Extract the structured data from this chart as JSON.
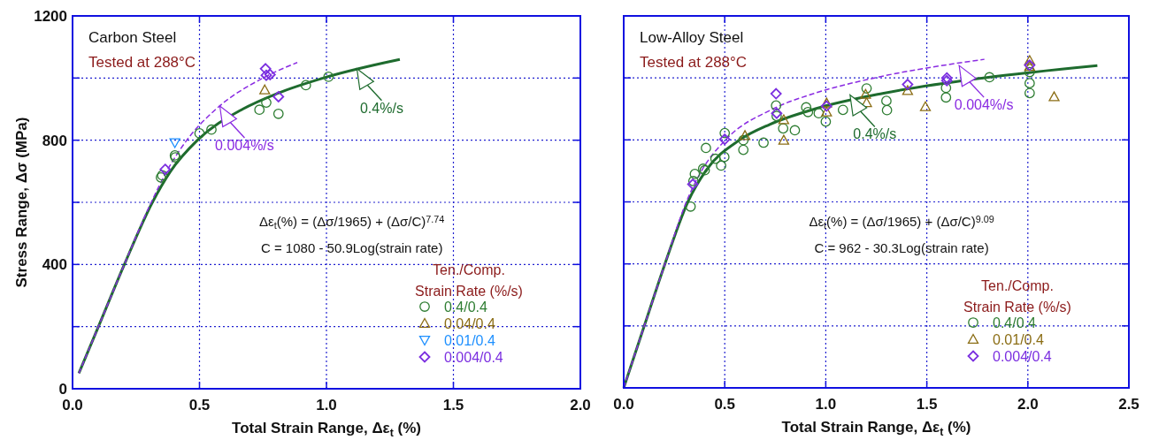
{
  "chart_data": [
    {
      "type": "scatter",
      "xlabel": "Total Strain Range, Δε$_{t}$ (%)",
      "ylabel": "Stress Range, Δσ (MPa)",
      "legend_title": "Ten./Comp.\nStrain Rate (%/s)",
      "legend": "bottom right",
      "grid": true,
      "xlim": [
        0,
        2
      ],
      "ylim": [
        0,
        1200
      ],
      "xticks": [
        {
          "value": 0,
          "label": "0.0"
        },
        {
          "value": 0.5,
          "label": "0.5"
        },
        {
          "value": 1,
          "label": "1.0"
        },
        {
          "value": 1.5,
          "label": "1.5"
        },
        {
          "value": 2,
          "label": "2.0"
        }
      ],
      "yticks": [
        0,
        {
          "value": 200,
          "label": null
        },
        400,
        {
          "value": 600,
          "label": null
        },
        800,
        {
          "value": 1000,
          "label": null
        },
        1200
      ],
      "annotations": [
        "Carbon Steel",
        "Tested at 288°C",
        "Δε$_{t}$(%) = (Δσ/1965) + (Δσ/C)$^{7.74}$",
        "C = 1080 - 50.9Log(strain rate)",
        {
          "text": "0.4%/s",
          "x": 1.12,
          "y": 1030
        },
        {
          "text": "0.004%/s",
          "x": 0.58,
          "y": 910
        }
      ],
      "series": [
        {
          "type": "line",
          "color": "#1e6b2e",
          "line_style": "solid",
          "x": [
            0.025,
            0.102,
            0.204,
            0.3145,
            0.386,
            0.492,
            0.67,
            0.805,
            0.987,
            1.232,
            1.289
          ],
          "values": [
            50,
            200,
            400,
            600,
            700,
            800,
            900,
            950,
            1000,
            1050,
            1060
          ]
        },
        {
          "type": "line",
          "color": "#8a2be2",
          "line_style": "dashed",
          "x": [
            0.025,
            0.102,
            0.204,
            0.31,
            0.371,
            0.45,
            0.565,
            0.75,
            0.885
          ],
          "values": [
            50,
            200,
            400,
            600,
            700,
            800,
            900,
            1000,
            1050
          ]
        },
        {
          "name": "0.4/0.4",
          "color": "#2e7d32",
          "marker": "circle",
          "x": [
            0.348,
            0.353,
            0.403,
            0.405,
            0.5,
            0.547,
            0.736,
            0.763,
            0.811,
            0.919,
            1.008
          ],
          "values": [
            680,
            687,
            751,
            745,
            822,
            834,
            898,
            921,
            885,
            977,
            1004
          ]
        },
        {
          "name": "0.04/0.4",
          "color": "#8b6d14",
          "marker": "triangle",
          "x": [
            0.757
          ],
          "values": [
            962
          ]
        },
        {
          "name": "0.01/0.4",
          "color": "#1e90ff",
          "marker": "triangle-down",
          "x": [
            0.403
          ],
          "values": [
            792
          ]
        },
        {
          "name": "0.004/0.4",
          "color": "#7b2fe0",
          "marker": "diamond",
          "x": [
            0.365,
            0.76,
            0.763,
            0.778,
            0.811
          ],
          "values": [
            706,
            1030,
            1009,
            1011,
            940
          ]
        }
      ]
    },
    {
      "type": "scatter",
      "xlabel": "Total Strain Range, Δε$_{t}$ (%)",
      "legend_title": "Ten./Comp.\nStrain Rate (%/s)",
      "legend": "bottom right",
      "grid": true,
      "tick_labels": "x",
      "xlim": [
        0,
        2.5
      ],
      "ylim": [
        0,
        1200
      ],
      "xticks": [
        {
          "value": 0,
          "label": "0.0"
        },
        {
          "value": 0.5,
          "label": "0.5"
        },
        {
          "value": 1,
          "label": "1.0"
        },
        {
          "value": 1.5,
          "label": "1.5"
        },
        {
          "value": 2,
          "label": "2.0"
        },
        {
          "value": 2.5,
          "label": "2.5"
        }
      ],
      "yticks": [
        0,
        200,
        400,
        600,
        800,
        1000,
        1200
      ],
      "annotations": [
        "Low-Alloy Steel",
        "Tested at 288°C",
        "Δε$_{t}$(%) = (Δσ/1965) + (Δσ/C)$^{9.09}$",
        "C = 962 - 30.3Log(strain rate)",
        {
          "text": "0.4%/s",
          "x": 1.12,
          "y": 945
        },
        {
          "text": "0.004%/s",
          "x": 1.66,
          "y": 1040
        }
      ],
      "series": [
        {
          "type": "line",
          "color": "#1e6b2e",
          "line_style": "solid",
          "x": [
            0,
            0.1018,
            0.204,
            0.3175,
            0.406,
            0.574,
            0.723,
            0.946,
            1.281,
            1.78,
            2.344
          ],
          "values": [
            0,
            200,
            400,
            600,
            700,
            800,
            850,
            900,
            950,
            1000,
            1040
          ]
        },
        {
          "type": "line",
          "color": "#8a2be2",
          "line_style": "dashed",
          "x": [
            0,
            0.1018,
            0.204,
            0.31,
            0.385,
            0.504,
            0.739,
            0.943,
            1.242,
            1.677,
            1.785
          ],
          "values": [
            0,
            200,
            400,
            600,
            700,
            800,
            900,
            950,
            1000,
            1050,
            1060
          ]
        },
        {
          "name": "0.4/0.4",
          "color": "#2e7d32",
          "marker": "circle",
          "x": [
            0.331,
            0.345,
            0.352,
            0.393,
            0.401,
            0.407,
            0.454,
            0.482,
            0.498,
            0.5,
            0.592,
            0.592,
            0.692,
            0.754,
            0.757,
            0.789,
            0.847,
            0.903,
            0.912,
            0.965,
            1.0,
            1.085,
            1.202,
            1.3,
            1.303,
            1.595,
            1.595,
            1.81,
            2.009,
            2.009,
            2.009
          ],
          "values": [
            585,
            667,
            690,
            707,
            702,
            774,
            739,
            717,
            745,
            822,
            768,
            799,
            791,
            911,
            877,
            837,
            831,
            905,
            890,
            886,
            859,
            897,
            966,
            926,
            896,
            968,
            937,
            1002,
            983,
            951,
            1019
          ]
        },
        {
          "name": "0.01/0.4",
          "color": "#8b6d14",
          "marker": "triangle",
          "x": [
            0.6,
            0.792,
            0.792,
            1.004,
            1.004,
            1.197,
            1.202,
            1.405,
            1.493,
            2.009,
            2.009,
            2.13
          ],
          "values": [
            814,
            865,
            799,
            919,
            890,
            947,
            920,
            959,
            907,
            1056,
            1037,
            939
          ]
        },
        {
          "name": "0.004/0.4",
          "color": "#7b2fe0",
          "marker": "diamond",
          "x": [
            0.342,
            0.5,
            0.754,
            0.757,
            1.004,
            1.405,
            1.599,
            1.599,
            2.009
          ],
          "values": [
            657,
            802,
            949,
            886,
            909,
            979,
            1000,
            991,
            1041
          ]
        }
      ]
    }
  ]
}
